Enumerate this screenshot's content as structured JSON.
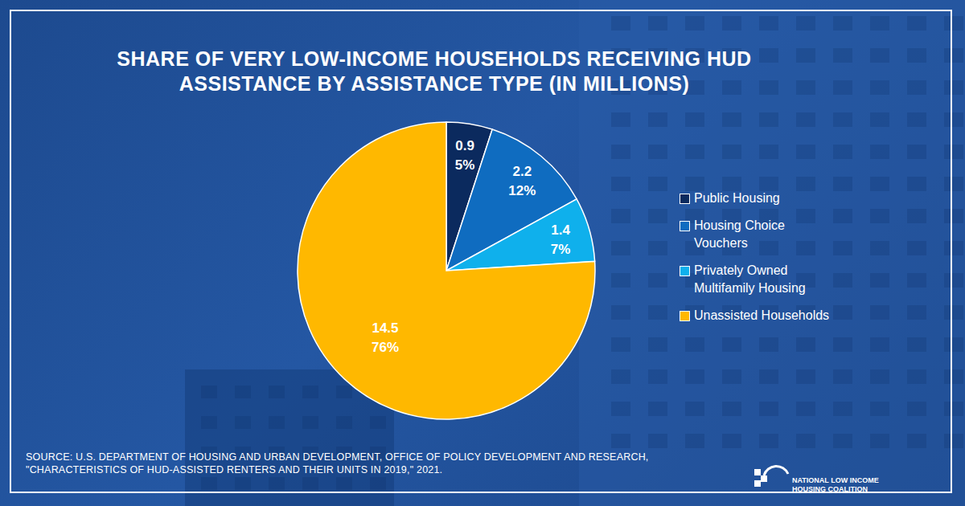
{
  "chart_data": {
    "type": "pie",
    "title": "SHARE OF VERY LOW-INCOME HOUSEHOLDS RECEIVING HUD ASSISTANCE BY ASSISTANCE TYPE (IN MILLIONS)",
    "categories": [
      "Public Housing",
      "Housing Choice Vouchers",
      "Privately Owned Multifamily Housing",
      "Unassisted Households"
    ],
    "values": [
      5,
      12,
      7,
      76
    ],
    "value_labels": [
      "5%",
      "12%",
      "7%",
      "76%"
    ],
    "households": [
      0.9,
      2.2,
      1.4,
      14.5
    ],
    "colors": [
      "#0b2a5e",
      "#0f6cc0",
      "#0fb0ec",
      "#ffb800"
    ],
    "data_labels": true,
    "legend": "right",
    "source": "SOURCE: U.S. DEPARTMENT OF HOUSING AND URBAN DEVELOPMENT, OFFICE OF POLICY DEVELOPMENT AND RESEARCH, \"CHARACTERISTICS OF HUD-ASSISTED RENTERS AND THEIR UNITS IN 2019,\" 2021.",
    "logo": "NATIONAL LOW INCOME HOUSING COALITION"
  }
}
